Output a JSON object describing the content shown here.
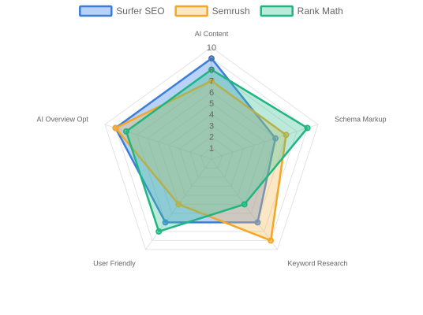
{
  "chart_data": {
    "type": "radar",
    "axes": [
      "AI Content",
      "Schema Markup",
      "Keyword Research",
      "User Friendly",
      "AI Overview Opt"
    ],
    "r_range": [
      0,
      10
    ],
    "ticks": [
      "1",
      "2",
      "3",
      "4",
      "5",
      "6",
      "7",
      "8",
      "9",
      "10"
    ],
    "grid": true,
    "legend_position": "top",
    "series": [
      {
        "name": "Surfer SEO",
        "values": [
          9,
          6,
          7,
          7,
          9
        ],
        "color": "#3b7ddd",
        "fill": "rgba(54,126,232,0.35)"
      },
      {
        "name": "Semrush",
        "values": [
          7,
          7,
          9,
          5,
          9
        ],
        "color": "#f5a623",
        "fill": "rgba(247,186,90,0.35)"
      },
      {
        "name": "Rank Math",
        "values": [
          8,
          9,
          5,
          8,
          8
        ],
        "color": "#1fb580",
        "fill": "rgba(64,196,150,0.35)"
      }
    ]
  }
}
